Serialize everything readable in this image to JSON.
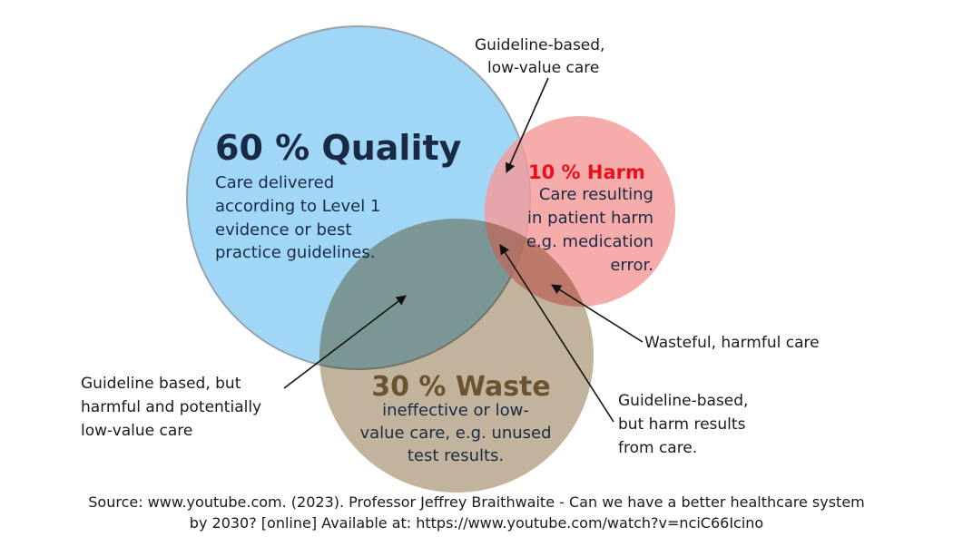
{
  "quality": {
    "title": "60 % Quality",
    "lines": [
      "Care delivered",
      "according to Level 1",
      "evidence or best",
      "practice guidelines."
    ]
  },
  "harm": {
    "title": "10 % Harm",
    "lines": [
      "Care resulting",
      "in patient harm",
      "e.g. medication",
      "error."
    ]
  },
  "waste": {
    "title": "30 % Waste",
    "lines": [
      "ineffective or low-",
      "value care, e.g. unused",
      "test results."
    ]
  },
  "annotations": [
    {
      "lines": [
        "Guideline-based,",
        "low-value care"
      ]
    },
    {
      "lines": [
        "Wasteful, harmful care"
      ]
    },
    {
      "lines": [
        "Guideline based, but",
        "harmful and potentially",
        "low-value care"
      ]
    },
    {
      "lines": [
        "Guideline-based,",
        "but harm results",
        "from care."
      ]
    }
  ],
  "source": [
    "Source: www.youtube.com. (2023). Professor Jeffrey Braithwaite - Can we have a better healthcare system",
    "by 2030? [online] Available at: https://www.youtube.com/watch?v=nciC66Icino"
  ]
}
